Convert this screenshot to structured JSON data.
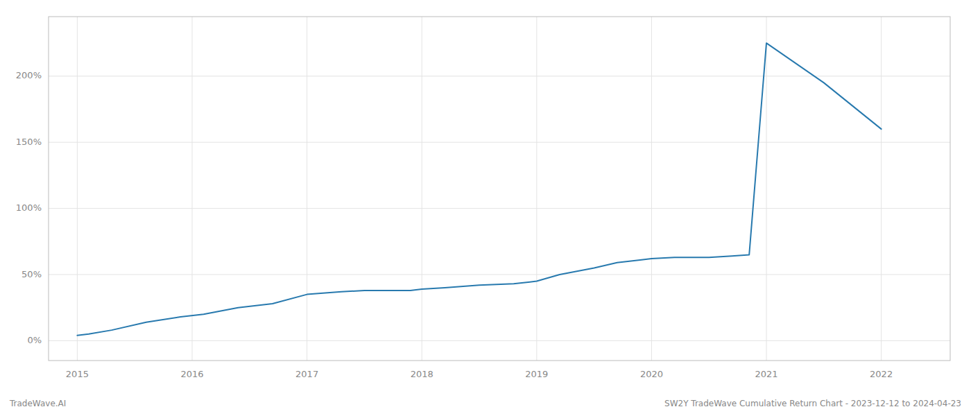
{
  "chart_data": {
    "type": "line",
    "x": [
      2015.0,
      2015.1,
      2015.3,
      2015.6,
      2015.9,
      2016.1,
      2016.4,
      2016.7,
      2017.0,
      2017.3,
      2017.5,
      2017.7,
      2017.9,
      2018.0,
      2018.2,
      2018.5,
      2018.8,
      2019.0,
      2019.2,
      2019.5,
      2019.7,
      2019.9,
      2020.0,
      2020.2,
      2020.5,
      2020.7,
      2020.85,
      2021.0,
      2021.5,
      2022.0
    ],
    "values": [
      4,
      5,
      8,
      14,
      18,
      20,
      25,
      28,
      35,
      37,
      38,
      38,
      38,
      39,
      40,
      42,
      43,
      45,
      50,
      55,
      59,
      61,
      62,
      63,
      63,
      64,
      65,
      225,
      195,
      160
    ],
    "color": "#2779ae",
    "xlim": [
      2014.75,
      2022.6
    ],
    "ylim": [
      -15,
      245
    ],
    "xticks": [
      2015,
      2016,
      2017,
      2018,
      2019,
      2020,
      2021,
      2022
    ],
    "yticks": [
      {
        "value": 0,
        "label": "0%"
      },
      {
        "value": 50,
        "label": "50%"
      },
      {
        "value": 100,
        "label": "100%"
      },
      {
        "value": 150,
        "label": "150%"
      },
      {
        "value": 200,
        "label": "200%"
      }
    ],
    "grid": true,
    "annotations": [
      "TradeWave.AI",
      "SW2Y TradeWave Cumulative Return Chart - 2023-12-12 to 2024-04-23"
    ]
  }
}
